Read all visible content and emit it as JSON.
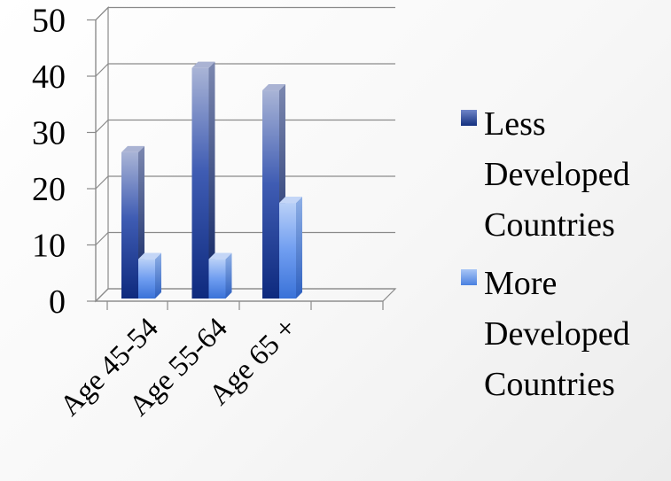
{
  "chart_data": {
    "type": "bar",
    "categories": [
      "Age 45-54",
      "Age 55-64",
      "Age 65 +"
    ],
    "series": [
      {
        "name": "Less Developed Countries",
        "values": [
          26,
          41,
          37
        ],
        "color": "#2a4aa8"
      },
      {
        "name": "More Developed Countries",
        "values": [
          7,
          7,
          17
        ],
        "color": "#5b86e6"
      }
    ],
    "ylim": [
      0,
      50
    ],
    "yticks": [
      0,
      10,
      20,
      30,
      40,
      50
    ],
    "grid": true,
    "legend": "right"
  },
  "legend": {
    "items": [
      {
        "lines": [
          "Less",
          "Developed",
          "Countries"
        ],
        "color": "#1e3a8a"
      },
      {
        "lines": [
          "More",
          "Developed",
          "Countries"
        ],
        "color": "#5b8fe8"
      }
    ]
  }
}
